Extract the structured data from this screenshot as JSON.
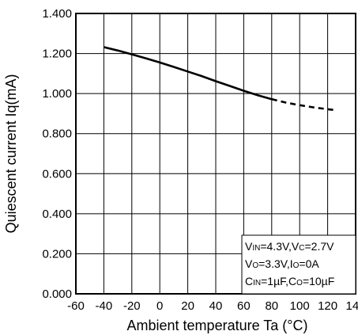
{
  "chart_data": {
    "type": "line",
    "title": "",
    "xlabel": "Ambient temperature Ta (°C)",
    "ylabel": "Quiescent current Iq(mA)",
    "xlim": [
      -60,
      140
    ],
    "ylim": [
      0,
      1.4
    ],
    "x_ticks": [
      "-60",
      "-40",
      "-20",
      "0",
      "20",
      "40",
      "60",
      "80",
      "100",
      "120",
      "140"
    ],
    "y_ticks": [
      "0.000",
      "0.200",
      "0.400",
      "0.600",
      "0.800",
      "1.000",
      "1.200",
      "1.400"
    ],
    "grid": true,
    "series": [
      {
        "style": "solid",
        "x": [
          -40,
          -30,
          -20,
          -10,
          0,
          10,
          20,
          30,
          40,
          50,
          60,
          70,
          80
        ],
        "y": [
          1.232,
          1.215,
          1.196,
          1.176,
          1.155,
          1.133,
          1.11,
          1.087,
          1.062,
          1.038,
          1.014,
          0.992,
          0.972
        ]
      },
      {
        "style": "dashed",
        "x": [
          80,
          90,
          100,
          110,
          120,
          125
        ],
        "y": [
          0.972,
          0.955,
          0.942,
          0.931,
          0.922,
          0.918
        ]
      }
    ],
    "conditions": [
      [
        {
          "t": "V"
        },
        {
          "t": "IN",
          "sub": true
        },
        {
          "t": "=4.3V,V"
        },
        {
          "t": "C",
          "sub": true
        },
        {
          "t": "=2.7V"
        }
      ],
      [
        {
          "t": "V"
        },
        {
          "t": "O",
          "sub": true
        },
        {
          "t": "=3.3V,I"
        },
        {
          "t": "O",
          "sub": true
        },
        {
          "t": "=0A"
        }
      ],
      [
        {
          "t": "C"
        },
        {
          "t": "IN",
          "sub": true
        },
        {
          "t": "=1µF,C"
        },
        {
          "t": "O",
          "sub": true
        },
        {
          "t": "=10µF"
        }
      ]
    ],
    "conditions_placement": "bottom-right"
  }
}
